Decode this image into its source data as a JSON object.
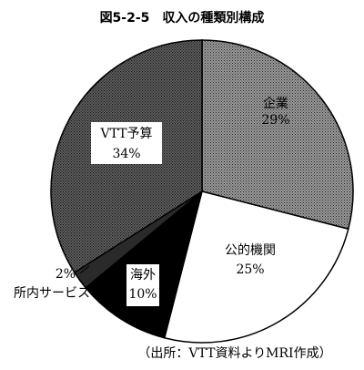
{
  "chart_data": {
    "type": "pie",
    "title": "図5-2-5　収入の種類別構成",
    "slices": [
      {
        "name": "企業",
        "value_label": "29%",
        "value": 29,
        "fill": "#6e6e6e"
      },
      {
        "name": "公的機関",
        "value_label": "25%",
        "value": 25,
        "fill": "#ffffff"
      },
      {
        "name": "海外",
        "value_label": "10%",
        "value": 10,
        "fill": "#000000"
      },
      {
        "name": "所内サービス",
        "value_label": "2%",
        "value": 2,
        "fill": "#3a3a3a"
      },
      {
        "name": "VTT予算",
        "value_label": "34%",
        "value": 34,
        "fill": "#8a8a8a"
      }
    ],
    "source": "（出所：VTT資料よりMRI作成）"
  }
}
